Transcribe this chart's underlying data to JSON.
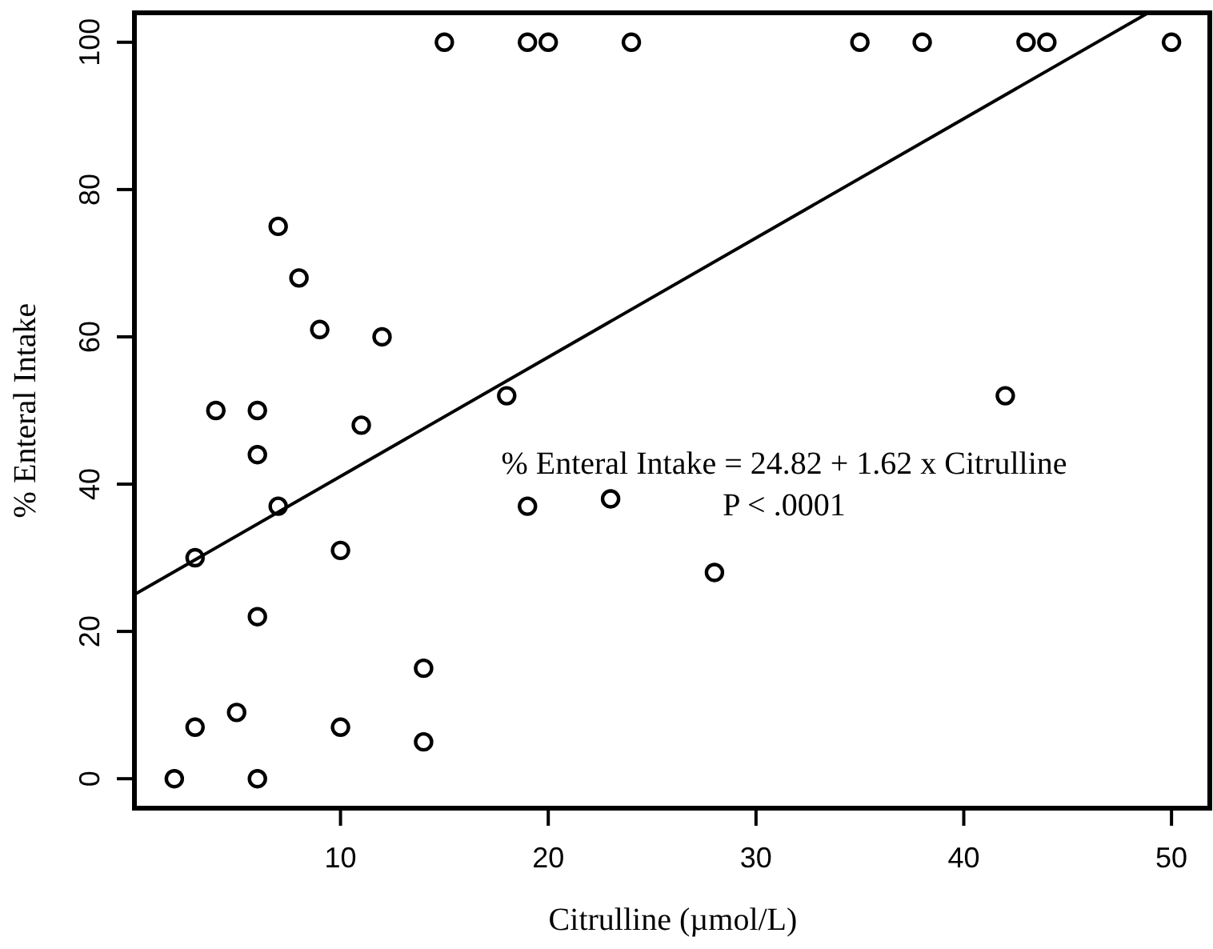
{
  "chart_data": {
    "type": "scatter",
    "xlabel": "Citrulline (µmol/L)",
    "ylabel": "% Enteral Intake",
    "xlim": [
      0.08,
      51.92
    ],
    "ylim": [
      -4,
      104
    ],
    "xticks": [
      10,
      20,
      30,
      40,
      50
    ],
    "yticks": [
      0,
      20,
      40,
      60,
      80,
      100
    ],
    "grid": false,
    "marker": "circle",
    "series": [
      {
        "color": "#000000",
        "x": [
          15,
          19,
          20,
          24,
          35,
          38,
          43,
          44,
          50,
          4,
          6,
          6,
          7,
          8,
          9,
          12,
          11,
          18,
          42,
          7,
          3,
          10,
          19,
          23,
          28,
          6,
          14,
          3,
          5,
          10,
          14,
          2,
          6
        ],
        "values": [
          100,
          100,
          100,
          100,
          100,
          100,
          100,
          100,
          100,
          50,
          50,
          44,
          75,
          68,
          61,
          60,
          48,
          52,
          52,
          37,
          30,
          31,
          37,
          38,
          28,
          22,
          15,
          7,
          9,
          7,
          5,
          0,
          0
        ]
      },
      {
        "type": "line",
        "color": "#000000",
        "marker": "none",
        "line_style": "solid",
        "x": [
          0.08,
          48.88
        ],
        "values": [
          25,
          104
        ]
      }
    ],
    "annotations": [
      "% Enteral Intake = 24.82 + 1.62 x Citrulline",
      "P < .0001"
    ]
  }
}
